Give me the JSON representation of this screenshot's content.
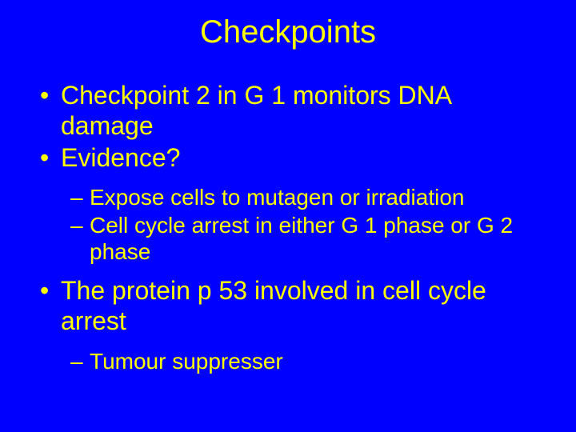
{
  "background_color": "#0000ff",
  "text_color": "#ffff00",
  "font_family": "Arial",
  "title": {
    "text": "Checkpoints",
    "fontsize": 40
  },
  "bullets": [
    {
      "level": 1,
      "text": "Checkpoint 2 in G 1 monitors DNA damage"
    },
    {
      "level": 1,
      "text": "Evidence?"
    },
    {
      "level": 2,
      "text": "Expose cells to mutagen or irradiation"
    },
    {
      "level": 2,
      "text": "Cell cycle arrest in either G 1 phase or G 2 phase"
    },
    {
      "level": 1,
      "text": "The protein p 53 involved in cell cycle arrest"
    },
    {
      "level": 2,
      "text": "Tumour suppresser"
    }
  ],
  "level1_fontsize": 32,
  "level2_fontsize": 28
}
